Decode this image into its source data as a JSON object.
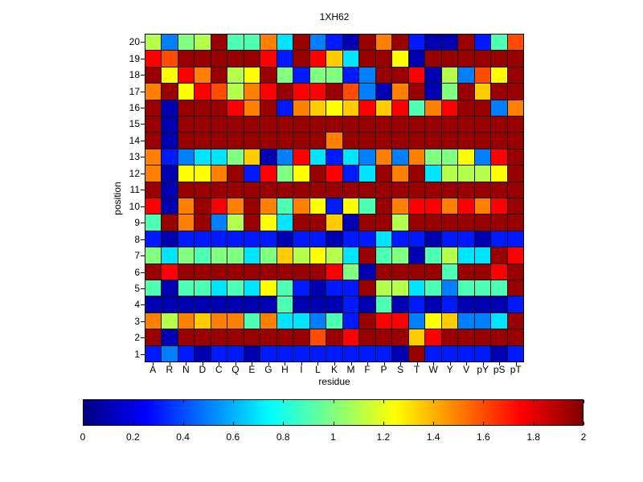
{
  "figure": {
    "background": "#ffffff"
  },
  "chart_data": {
    "type": "heatmap",
    "title": "1XH62",
    "xlabel": "residue",
    "ylabel": "position",
    "x_categories": [
      "A",
      "R",
      "N",
      "D",
      "C",
      "Q",
      "E",
      "G",
      "H",
      "I",
      "L",
      "K",
      "M",
      "F",
      "P",
      "S",
      "T",
      "W",
      "Y",
      "V",
      "pY",
      "pS",
      "pT"
    ],
    "y_categories": [
      "20",
      "19",
      "18",
      "17",
      "16",
      "15",
      "14",
      "13",
      "12",
      "11",
      "10",
      "9",
      "8",
      "7",
      "6",
      "5",
      "4",
      "3",
      "2",
      "1"
    ],
    "values": [
      [
        1.1,
        0.5,
        1.0,
        1.1,
        1.95,
        0.9,
        0.9,
        1.5,
        0.7,
        1.95,
        0.5,
        0.3,
        0.1,
        1.95,
        1.5,
        1.95,
        0.3,
        0.1,
        0.1,
        1.95,
        0.3,
        0.9,
        1.6
      ],
      [
        1.75,
        1.6,
        1.95,
        1.95,
        1.95,
        1.95,
        1.95,
        1.75,
        0.3,
        1.95,
        1.75,
        1.35,
        0.7,
        1.95,
        1.95,
        1.25,
        0.1,
        1.95,
        1.95,
        1.95,
        1.95,
        1.95,
        1.95
      ],
      [
        1.95,
        1.25,
        1.75,
        1.5,
        1.95,
        1.1,
        1.25,
        1.95,
        1.0,
        0.3,
        1.0,
        1.0,
        0.3,
        0.5,
        1.95,
        1.95,
        1.75,
        0.1,
        1.1,
        0.5,
        1.6,
        1.25,
        1.95
      ],
      [
        1.5,
        1.95,
        1.25,
        1.75,
        1.6,
        1.1,
        1.5,
        1.75,
        1.95,
        1.75,
        1.75,
        1.95,
        1.6,
        0.5,
        0.1,
        1.5,
        1.95,
        0.1,
        1.0,
        1.95,
        1.35,
        1.95,
        1.95
      ],
      [
        1.95,
        0.1,
        1.95,
        1.95,
        1.95,
        1.75,
        1.5,
        1.95,
        0.3,
        1.5,
        1.35,
        1.25,
        1.35,
        1.75,
        1.35,
        1.75,
        0.9,
        1.5,
        1.75,
        1.95,
        1.95,
        0.5,
        1.5
      ],
      [
        1.95,
        0.1,
        1.95,
        1.95,
        1.95,
        1.95,
        1.95,
        1.95,
        1.95,
        1.95,
        1.95,
        1.95,
        1.95,
        1.95,
        1.95,
        1.95,
        1.95,
        1.95,
        1.95,
        1.95,
        1.95,
        1.95,
        1.95
      ],
      [
        1.95,
        0.1,
        1.95,
        1.95,
        1.95,
        1.95,
        1.95,
        1.95,
        1.95,
        1.95,
        1.95,
        1.5,
        1.95,
        1.95,
        1.95,
        1.95,
        1.95,
        1.95,
        1.95,
        1.95,
        1.95,
        1.95,
        1.95
      ],
      [
        1.5,
        0.3,
        0.5,
        0.7,
        0.7,
        1.0,
        1.35,
        0.1,
        0.5,
        1.75,
        0.7,
        0.3,
        0.7,
        0.5,
        1.5,
        0.5,
        1.5,
        1.0,
        1.0,
        1.25,
        0.5,
        1.75,
        1.95
      ],
      [
        1.5,
        0.1,
        1.25,
        1.25,
        1.5,
        1.95,
        0.3,
        1.75,
        1.0,
        1.25,
        1.95,
        1.75,
        0.3,
        0.7,
        1.95,
        1.5,
        1.95,
        0.7,
        1.1,
        1.1,
        1.1,
        1.25,
        1.95
      ],
      [
        1.95,
        0.1,
        1.95,
        1.95,
        1.95,
        1.95,
        1.95,
        1.95,
        1.95,
        1.95,
        1.95,
        1.95,
        1.95,
        1.95,
        1.95,
        1.95,
        1.95,
        1.95,
        1.95,
        1.95,
        1.95,
        1.95,
        1.95
      ],
      [
        1.75,
        0.1,
        1.5,
        1.95,
        1.75,
        1.5,
        1.95,
        1.5,
        0.9,
        1.5,
        1.25,
        0.3,
        1.25,
        0.9,
        1.95,
        1.5,
        1.75,
        1.75,
        1.5,
        1.75,
        1.5,
        1.75,
        1.95
      ],
      [
        0.9,
        1.95,
        1.5,
        1.95,
        0.5,
        1.1,
        1.95,
        1.25,
        0.7,
        1.95,
        1.95,
        1.35,
        0.1,
        1.95,
        1.95,
        1.1,
        1.95,
        1.95,
        1.95,
        1.95,
        1.95,
        1.95,
        1.95
      ],
      [
        0.3,
        0.1,
        0.3,
        0.3,
        0.3,
        0.3,
        0.3,
        0.3,
        0.1,
        0.3,
        0.3,
        0.1,
        0.3,
        0.3,
        0.7,
        0.3,
        0.3,
        0.1,
        0.3,
        0.3,
        0.1,
        0.3,
        0.3
      ],
      [
        1.0,
        0.7,
        1.0,
        0.9,
        1.0,
        1.0,
        0.7,
        1.0,
        1.35,
        1.1,
        1.25,
        1.1,
        0.7,
        1.95,
        0.9,
        1.0,
        0.1,
        0.9,
        1.1,
        0.7,
        0.7,
        1.95,
        1.75
      ],
      [
        1.95,
        1.75,
        1.95,
        1.95,
        1.95,
        1.95,
        1.95,
        1.95,
        1.95,
        1.95,
        1.95,
        1.75,
        1.0,
        0.1,
        1.95,
        1.95,
        1.95,
        1.95,
        0.9,
        1.95,
        1.95,
        1.75,
        1.95
      ],
      [
        0.9,
        0.1,
        0.9,
        0.9,
        0.7,
        0.9,
        0.7,
        1.25,
        0.9,
        0.3,
        0.1,
        0.3,
        0.3,
        1.95,
        1.1,
        1.1,
        0.7,
        0.9,
        0.5,
        0.9,
        0.9,
        0.9,
        1.95
      ],
      [
        0.1,
        0.1,
        0.1,
        0.1,
        0.1,
        0.1,
        0.1,
        0.1,
        0.9,
        0.1,
        0.1,
        0.1,
        0.3,
        0.1,
        0.9,
        0.1,
        0.3,
        0.1,
        0.3,
        0.1,
        0.1,
        0.1,
        0.3
      ],
      [
        1.5,
        1.1,
        1.5,
        1.35,
        1.5,
        1.5,
        0.9,
        1.5,
        0.7,
        0.7,
        0.5,
        0.9,
        0.3,
        1.95,
        1.75,
        1.75,
        0.5,
        1.25,
        1.35,
        0.5,
        0.5,
        0.7,
        1.95
      ],
      [
        1.95,
        0.1,
        1.95,
        1.95,
        1.95,
        1.95,
        1.95,
        1.95,
        1.95,
        1.95,
        1.6,
        1.95,
        1.75,
        1.95,
        1.95,
        1.95,
        1.35,
        1.75,
        1.95,
        1.95,
        1.95,
        1.95,
        1.95
      ],
      [
        0.3,
        0.5,
        0.3,
        0.1,
        0.3,
        0.3,
        0.1,
        0.3,
        0.3,
        0.3,
        0.3,
        0.3,
        0.3,
        0.3,
        0.3,
        0.1,
        1.95,
        0.3,
        0.3,
        0.3,
        0.3,
        0.1,
        0.3
      ]
    ],
    "value_range": [
      0,
      2
    ],
    "colormap": "jet",
    "grid_lines": true,
    "colorbar": {
      "position": "bottom",
      "ticks": [
        "0",
        "0.2",
        "0.4",
        "0.6",
        "0.8",
        "1",
        "1.2",
        "1.4",
        "1.6",
        "1.8",
        "2"
      ]
    }
  }
}
